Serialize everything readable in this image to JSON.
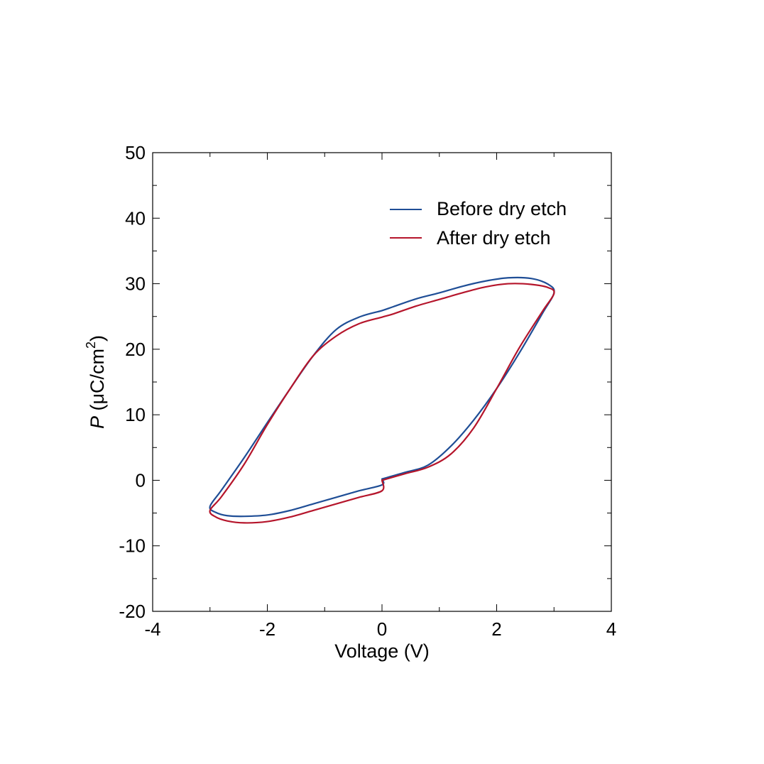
{
  "chart_data": {
    "type": "line",
    "title": "",
    "xlabel": "Voltage (V)",
    "ylabel": {
      "symbol": "P",
      "unit_open": " (μC/cm",
      "unit_sup": "2",
      "unit_close": ")"
    },
    "xlim": [
      -4,
      4
    ],
    "ylim": [
      -20,
      50
    ],
    "xticks": [
      -4,
      -2,
      0,
      2,
      4
    ],
    "yticks": [
      -20,
      -10,
      0,
      10,
      20,
      30,
      40,
      50
    ],
    "xtick_labels": [
      "-4",
      "-2",
      "0",
      "2",
      "4"
    ],
    "ytick_labels": [
      "-20",
      "-10",
      "0",
      "10",
      "20",
      "30",
      "40",
      "50"
    ],
    "grid": false,
    "legend": "top-right",
    "series": [
      {
        "name": "Before dry etch",
        "color": "#1f4e96",
        "x": [
          0,
          0.4,
          0.8,
          1.2,
          1.6,
          2.0,
          2.4,
          2.8,
          3.0,
          2.9,
          2.6,
          2.2,
          1.8,
          1.4,
          1.0,
          0.6,
          0.2,
          0,
          -0.4,
          -0.8,
          -1.2,
          -1.6,
          -2.0,
          -2.4,
          -2.8,
          -3.0,
          -2.9,
          -2.7,
          -2.4,
          -2.0,
          -1.6,
          -1.2,
          -0.8,
          -0.4,
          0,
          0
        ],
        "y": [
          0.2,
          1.2,
          2.3,
          5.2,
          9.2,
          14.0,
          19.5,
          25.5,
          28.6,
          29.9,
          30.8,
          30.9,
          30.4,
          29.6,
          28.6,
          27.7,
          26.5,
          25.9,
          24.9,
          23.0,
          19.0,
          14.0,
          8.8,
          3.5,
          -1.5,
          -4.0,
          -4.9,
          -5.4,
          -5.5,
          -5.3,
          -4.6,
          -3.6,
          -2.6,
          -1.6,
          -0.7,
          0.2
        ]
      },
      {
        "name": "After dry etch",
        "color": "#b5152b",
        "x": [
          0,
          0.4,
          0.8,
          1.2,
          1.6,
          2.0,
          2.4,
          2.8,
          3.0,
          2.9,
          2.6,
          2.2,
          1.8,
          1.4,
          1.0,
          0.6,
          0.2,
          0,
          -0.4,
          -0.8,
          -1.2,
          -1.6,
          -2.0,
          -2.4,
          -2.8,
          -3.0,
          -2.9,
          -2.7,
          -2.4,
          -2.0,
          -1.6,
          -1.2,
          -0.8,
          -0.4,
          0,
          0
        ],
        "y": [
          0,
          1.0,
          2.0,
          4.0,
          8.0,
          14.0,
          20.3,
          25.8,
          28.5,
          29.4,
          29.9,
          30.0,
          29.5,
          28.6,
          27.6,
          26.6,
          25.4,
          24.9,
          23.9,
          22.0,
          19.0,
          14.0,
          8.5,
          2.5,
          -2.5,
          -4.6,
          -5.6,
          -6.2,
          -6.5,
          -6.3,
          -5.6,
          -4.6,
          -3.6,
          -2.6,
          -1.6,
          0
        ]
      }
    ]
  }
}
